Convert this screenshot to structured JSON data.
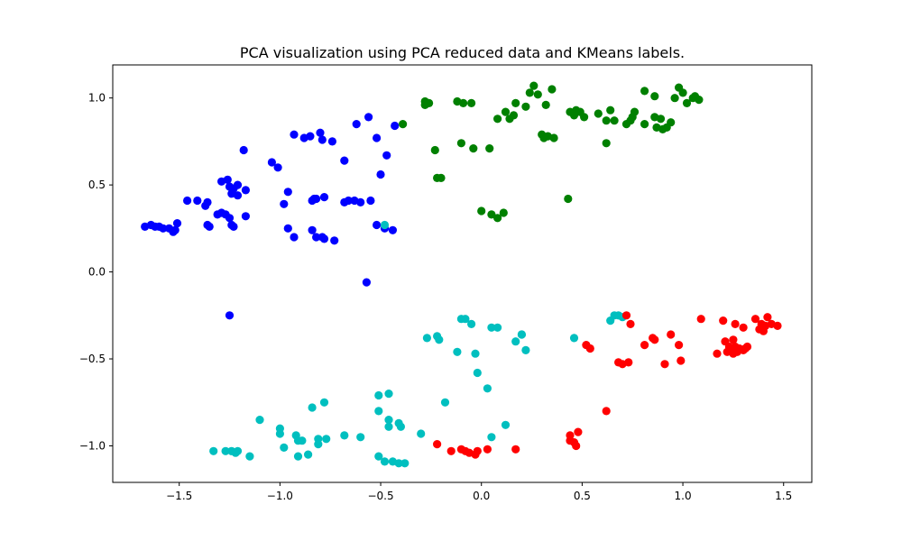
{
  "chart_data": {
    "type": "scatter",
    "title": "PCA visualization using PCA reduced data and KMeans labels.",
    "xlabel": "",
    "ylabel": "",
    "xlim": [
      -1.83,
      1.64
    ],
    "ylim": [
      -1.21,
      1.19
    ],
    "x_ticks": [
      -1.5,
      -1.0,
      -0.5,
      0.0,
      0.5,
      1.0,
      1.5
    ],
    "x_tick_labels": [
      "−1.5",
      "−1.0",
      "−0.5",
      "0.0",
      "0.5",
      "1.0",
      "1.5"
    ],
    "y_ticks": [
      -1.0,
      -0.5,
      0.0,
      0.5,
      1.0
    ],
    "y_tick_labels": [
      "−1.0",
      "−0.5",
      "0.0",
      "0.5",
      "1.0"
    ],
    "grid": false,
    "series": [
      {
        "color": "#0000ff",
        "points": [
          [
            -1.67,
            0.26
          ],
          [
            -1.64,
            0.27
          ],
          [
            -1.62,
            0.26
          ],
          [
            -1.6,
            0.26
          ],
          [
            -1.58,
            0.25
          ],
          [
            -1.55,
            0.25
          ],
          [
            -1.53,
            0.23
          ],
          [
            -1.52,
            0.24
          ],
          [
            -1.51,
            0.28
          ],
          [
            -1.46,
            0.41
          ],
          [
            -1.41,
            0.41
          ],
          [
            -1.37,
            0.38
          ],
          [
            -1.36,
            0.4
          ],
          [
            -1.36,
            0.27
          ],
          [
            -1.35,
            0.26
          ],
          [
            -1.31,
            0.33
          ],
          [
            -1.29,
            0.34
          ],
          [
            -1.27,
            0.33
          ],
          [
            -1.25,
            0.31
          ],
          [
            -1.24,
            0.27
          ],
          [
            -1.23,
            0.26
          ],
          [
            -1.25,
            0.49
          ],
          [
            -1.24,
            0.45
          ],
          [
            -1.21,
            0.44
          ],
          [
            -1.23,
            0.48
          ],
          [
            -1.21,
            0.5
          ],
          [
            -1.26,
            0.53
          ],
          [
            -1.29,
            0.52
          ],
          [
            -1.17,
            0.32
          ],
          [
            -1.17,
            0.47
          ],
          [
            -1.18,
            0.7
          ],
          [
            -1.25,
            -0.25
          ],
          [
            -1.04,
            0.63
          ],
          [
            -1.01,
            0.6
          ],
          [
            -0.98,
            0.39
          ],
          [
            -0.96,
            0.46
          ],
          [
            -0.96,
            0.25
          ],
          [
            -0.93,
            0.2
          ],
          [
            -0.93,
            0.79
          ],
          [
            -0.88,
            0.77
          ],
          [
            -0.85,
            0.78
          ],
          [
            -0.8,
            0.8
          ],
          [
            -0.79,
            0.76
          ],
          [
            -0.74,
            0.75
          ],
          [
            -0.83,
            0.42
          ],
          [
            -0.84,
            0.41
          ],
          [
            -0.82,
            0.42
          ],
          [
            -0.78,
            0.43
          ],
          [
            -0.84,
            0.24
          ],
          [
            -0.82,
            0.2
          ],
          [
            -0.79,
            0.2
          ],
          [
            -0.78,
            0.19
          ],
          [
            -0.73,
            0.18
          ],
          [
            -0.68,
            0.4
          ],
          [
            -0.66,
            0.41
          ],
          [
            -0.63,
            0.41
          ],
          [
            -0.6,
            0.4
          ],
          [
            -0.55,
            0.41
          ],
          [
            -0.68,
            0.64
          ],
          [
            -0.62,
            0.85
          ],
          [
            -0.56,
            0.89
          ],
          [
            -0.57,
            -0.06
          ],
          [
            -0.52,
            0.27
          ],
          [
            -0.48,
            0.25
          ],
          [
            -0.44,
            0.24
          ],
          [
            -0.47,
            0.67
          ],
          [
            -0.5,
            0.56
          ],
          [
            -0.52,
            0.77
          ],
          [
            -0.43,
            0.84
          ]
        ]
      },
      {
        "color": "#008000",
        "points": [
          [
            -0.39,
            0.85
          ],
          [
            -0.28,
            0.96
          ],
          [
            -0.28,
            0.98
          ],
          [
            -0.26,
            0.97
          ],
          [
            -0.23,
            0.7
          ],
          [
            -0.22,
            0.54
          ],
          [
            -0.2,
            0.54
          ],
          [
            -0.12,
            0.98
          ],
          [
            -0.09,
            0.97
          ],
          [
            -0.05,
            0.97
          ],
          [
            -0.1,
            0.74
          ],
          [
            -0.04,
            0.71
          ],
          [
            0.04,
            0.71
          ],
          [
            0.0,
            0.35
          ],
          [
            0.05,
            0.33
          ],
          [
            0.08,
            0.31
          ],
          [
            0.11,
            0.34
          ],
          [
            0.08,
            0.88
          ],
          [
            0.12,
            0.92
          ],
          [
            0.14,
            0.88
          ],
          [
            0.16,
            0.9
          ],
          [
            0.17,
            0.97
          ],
          [
            0.22,
            0.95
          ],
          [
            0.24,
            1.03
          ],
          [
            0.26,
            1.07
          ],
          [
            0.28,
            1.02
          ],
          [
            0.3,
            0.79
          ],
          [
            0.31,
            0.77
          ],
          [
            0.33,
            0.78
          ],
          [
            0.36,
            0.77
          ],
          [
            0.32,
            0.96
          ],
          [
            0.35,
            1.05
          ],
          [
            0.43,
            0.42
          ],
          [
            0.44,
            0.92
          ],
          [
            0.47,
            0.93
          ],
          [
            0.49,
            0.92
          ],
          [
            0.51,
            0.89
          ],
          [
            0.46,
            0.9
          ],
          [
            0.58,
            0.91
          ],
          [
            0.62,
            0.74
          ],
          [
            0.62,
            0.87
          ],
          [
            0.64,
            0.93
          ],
          [
            0.66,
            0.87
          ],
          [
            0.76,
            0.92
          ],
          [
            0.75,
            0.89
          ],
          [
            0.72,
            0.85
          ],
          [
            0.74,
            0.87
          ],
          [
            0.81,
            1.04
          ],
          [
            0.81,
            0.85
          ],
          [
            0.86,
            0.89
          ],
          [
            0.87,
            0.83
          ],
          [
            0.9,
            0.82
          ],
          [
            0.92,
            0.83
          ],
          [
            0.89,
            0.88
          ],
          [
            0.94,
            0.86
          ],
          [
            0.96,
            1.0
          ],
          [
            0.98,
            1.06
          ],
          [
            1.0,
            1.03
          ],
          [
            1.02,
            0.97
          ],
          [
            1.05,
            1.0
          ],
          [
            1.06,
            1.01
          ],
          [
            1.08,
            0.99
          ],
          [
            0.86,
            1.01
          ]
        ]
      },
      {
        "color": "#00bfbf",
        "points": [
          [
            -0.48,
            0.27
          ],
          [
            -1.33,
            -1.03
          ],
          [
            -1.27,
            -1.03
          ],
          [
            -1.24,
            -1.03
          ],
          [
            -1.22,
            -1.04
          ],
          [
            -1.21,
            -1.03
          ],
          [
            -1.15,
            -1.06
          ],
          [
            -1.1,
            -0.85
          ],
          [
            -1.0,
            -0.9
          ],
          [
            -1.0,
            -0.93
          ],
          [
            -0.98,
            -1.01
          ],
          [
            -0.92,
            -0.94
          ],
          [
            -0.91,
            -0.97
          ],
          [
            -0.89,
            -0.97
          ],
          [
            -0.91,
            -1.06
          ],
          [
            -0.86,
            -1.05
          ],
          [
            -0.84,
            -0.78
          ],
          [
            -0.78,
            -0.75
          ],
          [
            -0.81,
            -0.96
          ],
          [
            -0.81,
            -0.99
          ],
          [
            -0.77,
            -0.96
          ],
          [
            -0.68,
            -0.94
          ],
          [
            -0.6,
            -0.95
          ],
          [
            -0.51,
            -1.06
          ],
          [
            -0.48,
            -1.09
          ],
          [
            -0.44,
            -1.09
          ],
          [
            -0.41,
            -1.1
          ],
          [
            -0.38,
            -1.1
          ],
          [
            -0.51,
            -0.8
          ],
          [
            -0.51,
            -0.71
          ],
          [
            -0.46,
            -0.7
          ],
          [
            -0.46,
            -0.85
          ],
          [
            -0.46,
            -0.89
          ],
          [
            -0.41,
            -0.87
          ],
          [
            -0.4,
            -0.89
          ],
          [
            -0.3,
            -0.93
          ],
          [
            -0.27,
            -0.38
          ],
          [
            -0.22,
            -0.37
          ],
          [
            -0.21,
            -0.39
          ],
          [
            -0.18,
            -0.75
          ],
          [
            -0.1,
            -0.27
          ],
          [
            -0.12,
            -0.46
          ],
          [
            -0.05,
            -0.3
          ],
          [
            -0.03,
            -0.47
          ],
          [
            -0.02,
            -0.58
          ],
          [
            0.03,
            -0.67
          ],
          [
            0.05,
            -0.32
          ],
          [
            0.08,
            -0.32
          ],
          [
            0.05,
            -0.95
          ],
          [
            0.12,
            -0.88
          ],
          [
            0.17,
            -0.4
          ],
          [
            0.2,
            -0.36
          ],
          [
            0.22,
            -0.45
          ],
          [
            0.46,
            -0.38
          ],
          [
            0.64,
            -0.28
          ],
          [
            0.66,
            -0.25
          ],
          [
            0.68,
            -0.25
          ],
          [
            0.7,
            -0.26
          ],
          [
            0.2,
            -0.36
          ],
          [
            -0.08,
            -0.27
          ]
        ]
      },
      {
        "color": "#ff0000",
        "points": [
          [
            -0.22,
            -0.99
          ],
          [
            -0.15,
            -1.03
          ],
          [
            -0.1,
            -1.02
          ],
          [
            -0.08,
            -1.03
          ],
          [
            -0.06,
            -1.04
          ],
          [
            -0.03,
            -1.05
          ],
          [
            -0.02,
            -1.03
          ],
          [
            0.03,
            -1.02
          ],
          [
            0.17,
            -1.02
          ],
          [
            0.44,
            -0.94
          ],
          [
            0.44,
            -0.97
          ],
          [
            0.46,
            -0.98
          ],
          [
            0.48,
            -0.92
          ],
          [
            0.47,
            -1.0
          ],
          [
            0.52,
            -0.42
          ],
          [
            0.54,
            -0.44
          ],
          [
            0.62,
            -0.8
          ],
          [
            0.68,
            -0.52
          ],
          [
            0.7,
            -0.53
          ],
          [
            0.73,
            -0.52
          ],
          [
            0.72,
            -0.25
          ],
          [
            0.74,
            -0.3
          ],
          [
            0.81,
            -0.42
          ],
          [
            0.85,
            -0.38
          ],
          [
            0.86,
            -0.39
          ],
          [
            0.91,
            -0.53
          ],
          [
            0.94,
            -0.36
          ],
          [
            0.98,
            -0.42
          ],
          [
            0.99,
            -0.51
          ],
          [
            1.09,
            -0.27
          ],
          [
            1.17,
            -0.47
          ],
          [
            1.2,
            -0.28
          ],
          [
            1.21,
            -0.4
          ],
          [
            1.23,
            -0.43
          ],
          [
            1.22,
            -0.46
          ],
          [
            1.24,
            -0.45
          ],
          [
            1.25,
            -0.47
          ],
          [
            1.26,
            -0.43
          ],
          [
            1.27,
            -0.46
          ],
          [
            1.28,
            -0.44
          ],
          [
            1.3,
            -0.45
          ],
          [
            1.31,
            -0.44
          ],
          [
            1.32,
            -0.43
          ],
          [
            1.26,
            -0.3
          ],
          [
            1.3,
            -0.32
          ],
          [
            1.36,
            -0.27
          ],
          [
            1.38,
            -0.33
          ],
          [
            1.39,
            -0.3
          ],
          [
            1.41,
            -0.31
          ],
          [
            1.42,
            -0.26
          ],
          [
            1.44,
            -0.3
          ],
          [
            1.47,
            -0.31
          ],
          [
            1.4,
            -0.34
          ],
          [
            1.25,
            -0.39
          ]
        ]
      }
    ]
  }
}
